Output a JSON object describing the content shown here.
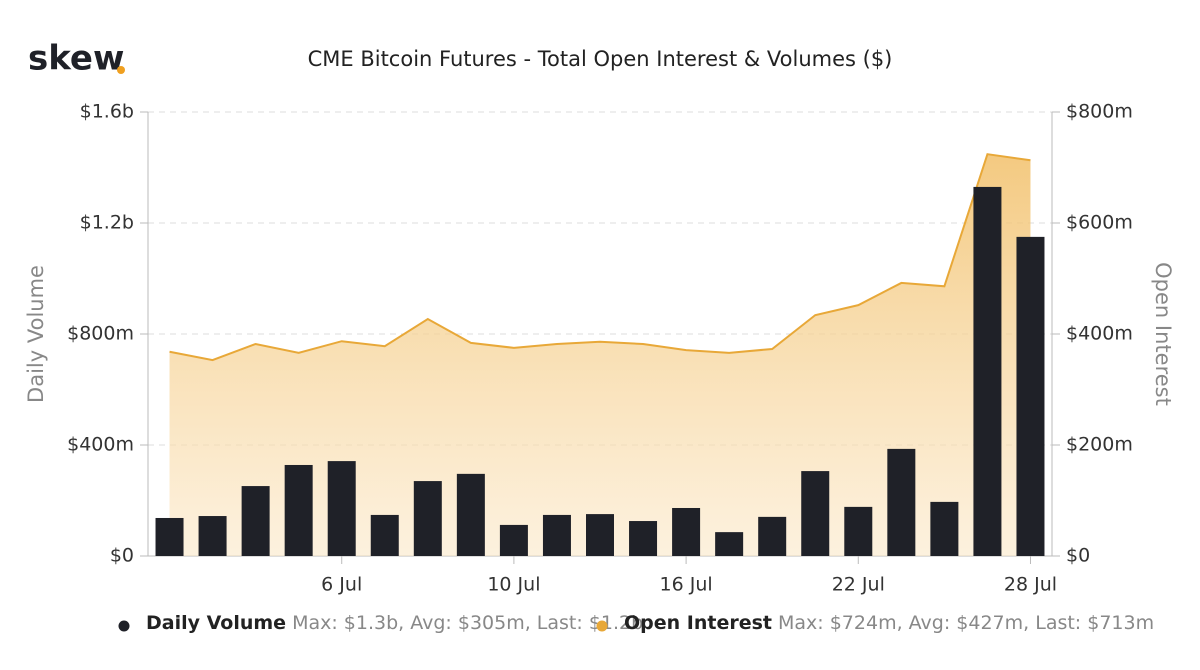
{
  "logo": "skew",
  "chart_data": {
    "type": "bar-area",
    "title": "CME Bitcoin Futures - Total Open Interest & Volumes ($)",
    "y_label": "Daily Volume",
    "y2_label": "Open Interest",
    "categories": [
      null,
      null,
      null,
      null,
      "6 Jul",
      null,
      null,
      null,
      "10 Jul",
      null,
      null,
      null,
      "16 Jul",
      null,
      null,
      null,
      "22 Jul",
      null,
      null,
      null,
      "28 Jul"
    ],
    "ylim": [
      0,
      1600000000
    ],
    "yticks": [
      {
        "value": 0,
        "label": "$0"
      },
      {
        "value": 400000000,
        "label": "$400m"
      },
      {
        "value": 800000000,
        "label": "$800m"
      },
      {
        "value": 1200000000,
        "label": "$1.2b"
      },
      {
        "value": 1600000000,
        "label": "$1.6b"
      }
    ],
    "y2lim": [
      0,
      800000000
    ],
    "y2ticks": [
      {
        "value": 0,
        "label": "$0"
      },
      {
        "value": 200000000,
        "label": "$200m"
      },
      {
        "value": 400000000,
        "label": "$400m"
      },
      {
        "value": 600000000,
        "label": "$600m"
      },
      {
        "value": 800000000,
        "label": "$800m"
      }
    ],
    "grid": true,
    "series": [
      {
        "name": "Daily Volume",
        "color": "#1f2128",
        "legend_stats": "Max: $1.3b, Avg: $305m, Last: $1.2b",
        "values": [
          137000000,
          144000000,
          252000000,
          328000000,
          342000000,
          148000000,
          270000000,
          296000000,
          112000000,
          148000000,
          151000000,
          126000000,
          173000000,
          86000000,
          141000000,
          306000000,
          177000000,
          386000000,
          195000000,
          1330000000,
          1150000000
        ]
      },
      {
        "name": "Open Interest",
        "color": "#e8a838",
        "axis": "y2",
        "legend_stats": "Max: $724m, Avg: $427m, Last: $713m",
        "values": [
          368000000,
          353000000,
          382000000,
          366000000,
          387000000,
          378000000,
          427000000,
          384000000,
          375000000,
          382000000,
          386000000,
          382000000,
          371000000,
          366000000,
          373000000,
          434000000,
          452000000,
          492000000,
          486000000,
          724000000,
          713000000
        ]
      }
    ]
  }
}
